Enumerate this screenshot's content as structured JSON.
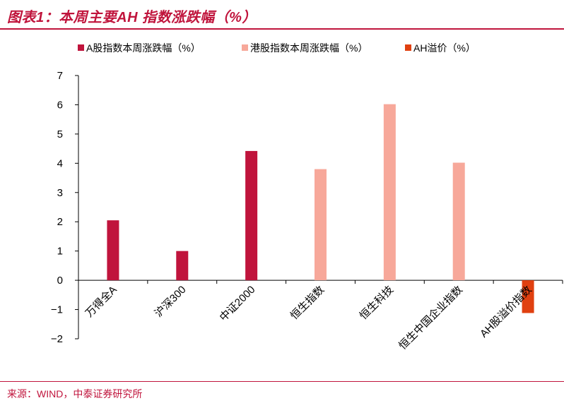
{
  "title": "图表1：本周主要AH 指数涨跌幅（%）",
  "source": "来源：WIND，中泰证券研究所",
  "colors": {
    "a_share": "#c0143c",
    "hk": "#f7a89a",
    "premium": "#e04010",
    "axis": "#000000",
    "brand": "#c0143c"
  },
  "chart_data": {
    "type": "bar",
    "categories": [
      "万得全A",
      "沪深300",
      "中证2000",
      "恒生指数",
      "恒生科技",
      "恒生中国企业指数",
      "AH股溢价指数"
    ],
    "series": [
      {
        "name": "A股指数本周涨跌幅（%）",
        "color": "#c0143c",
        "values": [
          2.05,
          1.0,
          4.42,
          null,
          null,
          null,
          null
        ]
      },
      {
        "name": "港股指数本周涨跌幅（%）",
        "color": "#f7a89a",
        "values": [
          null,
          null,
          null,
          3.8,
          6.02,
          4.02,
          null
        ]
      },
      {
        "name": "AH溢价（%）",
        "color": "#e04010",
        "values": [
          null,
          null,
          null,
          null,
          null,
          null,
          -1.12
        ]
      }
    ],
    "ylim": [
      -2,
      7
    ],
    "yticks": [
      7,
      6,
      5,
      4,
      3,
      2,
      1,
      0,
      -1,
      -2
    ],
    "xlabel": "",
    "ylabel": "",
    "grid": false,
    "legend_position": "top"
  }
}
